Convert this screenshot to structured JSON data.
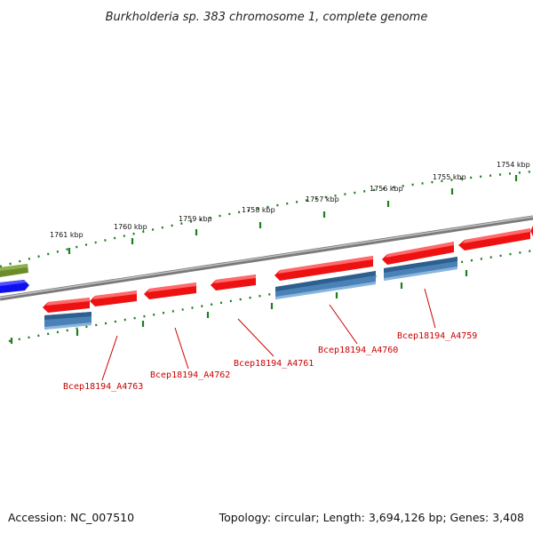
{
  "title": "Burkholderia sp. 383 chromosome 1, complete genome",
  "footer": {
    "accession": "Accession: NC_007510",
    "summary": "Topology: circular; Length: 3,694,126 bp; Genes: 3,408"
  },
  "scale_ticks": [
    {
      "label": "1761 kbp"
    },
    {
      "label": "1760 kbp"
    },
    {
      "label": "1759 kbp"
    },
    {
      "label": "1758 kbp"
    },
    {
      "label": "1757 kbp"
    },
    {
      "label": "1756 kbp"
    },
    {
      "label": "1755 kbp"
    },
    {
      "label": "1754 kbp"
    }
  ],
  "gene_labels": [
    {
      "text": "Bcep18194_A4763"
    },
    {
      "text": "Bcep18194_A4762"
    },
    {
      "text": "Bcep18194_A4761"
    },
    {
      "text": "Bcep18194_A4760"
    },
    {
      "text": "Bcep18194_A4759"
    }
  ],
  "colors": {
    "backbone": "#8a8a8a",
    "gene_red": "#ee1111",
    "gene_blue": "#4a82b8",
    "gene_olive": "#6b8c2a",
    "gene_darkblue": "#1010ee",
    "tick_green": "#1f7f1f",
    "label_red": "#cc0000"
  }
}
